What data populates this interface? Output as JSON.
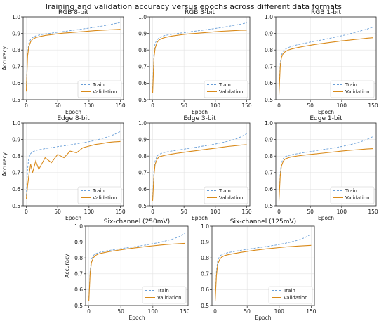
{
  "figure_title": "Training and validation accuracy versus epochs across different data formats",
  "chart_data": [
    {
      "type": "line",
      "title": "RGB 8-bit",
      "xlabel": "Epoch",
      "ylabel": "Accuracy",
      "xlim": [
        -5,
        155
      ],
      "ylim": [
        0.5,
        1.0
      ],
      "xticks": [
        "0",
        "50",
        "100",
        "150"
      ],
      "yticks": [
        "0.5",
        "0.6",
        "0.7",
        "0.8",
        "0.9",
        "1.0"
      ],
      "grid": true,
      "legend": "bottom-right",
      "series": [
        {
          "name": "Train",
          "color": "#6a9fd8",
          "style": "dashed",
          "x": [
            0,
            2,
            4,
            7,
            10,
            15,
            20,
            30,
            40,
            50,
            60,
            70,
            80,
            90,
            100,
            110,
            120,
            130,
            140,
            150
          ],
          "values": [
            0.58,
            0.78,
            0.84,
            0.865,
            0.875,
            0.885,
            0.89,
            0.897,
            0.902,
            0.907,
            0.912,
            0.917,
            0.922,
            0.927,
            0.932,
            0.938,
            0.944,
            0.951,
            0.958,
            0.966
          ]
        },
        {
          "name": "Validation",
          "color": "#d98a1a",
          "style": "solid",
          "x": [
            0,
            2,
            4,
            7,
            10,
            15,
            20,
            30,
            40,
            50,
            60,
            70,
            80,
            90,
            100,
            110,
            120,
            130,
            140,
            150
          ],
          "values": [
            0.55,
            0.76,
            0.82,
            0.85,
            0.865,
            0.875,
            0.88,
            0.888,
            0.893,
            0.898,
            0.902,
            0.905,
            0.908,
            0.911,
            0.914,
            0.917,
            0.919,
            0.921,
            0.923,
            0.925
          ]
        }
      ]
    },
    {
      "type": "line",
      "title": "RGB 3-bit",
      "xlabel": "Epoch",
      "ylabel": "",
      "xlim": [
        -5,
        155
      ],
      "ylim": [
        0.5,
        1.0
      ],
      "xticks": [
        "0",
        "50",
        "100",
        "150"
      ],
      "yticks": [
        "0.5",
        "0.6",
        "0.7",
        "0.8",
        "0.9",
        "1.0"
      ],
      "grid": true,
      "legend": "bottom-right",
      "series": [
        {
          "name": "Train",
          "color": "#6a9fd8",
          "style": "dashed",
          "x": [
            0,
            2,
            4,
            7,
            10,
            15,
            20,
            30,
            40,
            50,
            60,
            70,
            80,
            90,
            100,
            110,
            120,
            130,
            140,
            150
          ],
          "values": [
            0.57,
            0.78,
            0.84,
            0.862,
            0.872,
            0.882,
            0.888,
            0.895,
            0.9,
            0.905,
            0.91,
            0.915,
            0.92,
            0.925,
            0.93,
            0.936,
            0.942,
            0.949,
            0.956,
            0.964
          ]
        },
        {
          "name": "Validation",
          "color": "#d98a1a",
          "style": "solid",
          "x": [
            0,
            2,
            4,
            7,
            10,
            15,
            20,
            30,
            40,
            50,
            60,
            70,
            80,
            90,
            100,
            110,
            120,
            130,
            140,
            150
          ],
          "values": [
            0.54,
            0.75,
            0.81,
            0.845,
            0.86,
            0.87,
            0.876,
            0.884,
            0.889,
            0.894,
            0.898,
            0.901,
            0.904,
            0.907,
            0.91,
            0.913,
            0.915,
            0.917,
            0.919,
            0.92
          ]
        }
      ]
    },
    {
      "type": "line",
      "title": "RGB 1-bit",
      "xlabel": "Epoch",
      "ylabel": "",
      "xlim": [
        -5,
        155
      ],
      "ylim": [
        0.5,
        1.0
      ],
      "xticks": [
        "0",
        "50",
        "100",
        "150"
      ],
      "yticks": [
        "0.5",
        "0.6",
        "0.7",
        "0.8",
        "0.9",
        "1.0"
      ],
      "grid": true,
      "legend": "bottom-right",
      "series": [
        {
          "name": "Train",
          "color": "#6a9fd8",
          "style": "dashed",
          "x": [
            0,
            2,
            4,
            7,
            10,
            15,
            20,
            30,
            40,
            50,
            60,
            70,
            80,
            90,
            100,
            110,
            120,
            130,
            140,
            150
          ],
          "values": [
            0.56,
            0.72,
            0.77,
            0.795,
            0.805,
            0.815,
            0.822,
            0.832,
            0.84,
            0.848,
            0.855,
            0.862,
            0.87,
            0.878,
            0.886,
            0.895,
            0.905,
            0.915,
            0.926,
            0.938
          ]
        },
        {
          "name": "Validation",
          "color": "#d98a1a",
          "style": "solid",
          "x": [
            0,
            2,
            4,
            7,
            10,
            15,
            20,
            30,
            40,
            50,
            60,
            70,
            80,
            90,
            100,
            110,
            120,
            130,
            140,
            150
          ],
          "values": [
            0.53,
            0.7,
            0.755,
            0.78,
            0.79,
            0.8,
            0.806,
            0.815,
            0.822,
            0.829,
            0.835,
            0.84,
            0.845,
            0.85,
            0.855,
            0.859,
            0.863,
            0.867,
            0.871,
            0.874
          ]
        }
      ]
    },
    {
      "type": "line",
      "title": "Edge 8-bit",
      "xlabel": "Epoch",
      "ylabel": "Accuracy",
      "xlim": [
        -5,
        155
      ],
      "ylim": [
        0.5,
        1.0
      ],
      "xticks": [
        "0",
        "50",
        "100",
        "150"
      ],
      "yticks": [
        "0.5",
        "0.6",
        "0.7",
        "0.8",
        "0.9",
        "1.0"
      ],
      "grid": true,
      "legend": "bottom-right",
      "series": [
        {
          "name": "Train",
          "color": "#6a9fd8",
          "style": "dashed",
          "x": [
            0,
            2,
            4,
            7,
            10,
            15,
            20,
            30,
            40,
            50,
            60,
            70,
            80,
            90,
            100,
            110,
            120,
            130,
            140,
            150
          ],
          "values": [
            0.56,
            0.72,
            0.79,
            0.815,
            0.826,
            0.833,
            0.838,
            0.845,
            0.851,
            0.857,
            0.862,
            0.868,
            0.874,
            0.88,
            0.887,
            0.895,
            0.905,
            0.916,
            0.93,
            0.948
          ]
        },
        {
          "name": "Validation",
          "color": "#d98a1a",
          "style": "solid",
          "x": [
            0,
            2,
            4,
            7,
            10,
            15,
            20,
            30,
            40,
            50,
            60,
            70,
            80,
            90,
            100,
            110,
            120,
            130,
            140,
            150
          ],
          "values": [
            0.54,
            0.62,
            0.68,
            0.75,
            0.7,
            0.77,
            0.72,
            0.79,
            0.76,
            0.81,
            0.79,
            0.83,
            0.82,
            0.85,
            0.86,
            0.87,
            0.875,
            0.882,
            0.886,
            0.888
          ]
        }
      ]
    },
    {
      "type": "line",
      "title": "Edge 3-bit",
      "xlabel": "Epoch",
      "ylabel": "",
      "xlim": [
        -5,
        155
      ],
      "ylim": [
        0.5,
        1.0
      ],
      "xticks": [
        "0",
        "50",
        "100",
        "150"
      ],
      "yticks": [
        "0.5",
        "0.6",
        "0.7",
        "0.8",
        "0.9",
        "1.0"
      ],
      "grid": true,
      "legend": "bottom-right",
      "series": [
        {
          "name": "Train",
          "color": "#6a9fd8",
          "style": "dashed",
          "x": [
            0,
            2,
            4,
            7,
            10,
            15,
            20,
            30,
            40,
            50,
            60,
            70,
            80,
            90,
            100,
            110,
            120,
            130,
            140,
            150
          ],
          "values": [
            0.55,
            0.71,
            0.77,
            0.8,
            0.81,
            0.818,
            0.823,
            0.83,
            0.836,
            0.842,
            0.848,
            0.854,
            0.86,
            0.866,
            0.873,
            0.881,
            0.89,
            0.9,
            0.915,
            0.935
          ]
        },
        {
          "name": "Validation",
          "color": "#d98a1a",
          "style": "solid",
          "x": [
            0,
            2,
            4,
            7,
            10,
            15,
            20,
            30,
            40,
            50,
            60,
            70,
            80,
            90,
            100,
            110,
            120,
            130,
            140,
            150
          ],
          "values": [
            0.53,
            0.68,
            0.75,
            0.78,
            0.795,
            0.8,
            0.805,
            0.812,
            0.818,
            0.823,
            0.828,
            0.833,
            0.838,
            0.843,
            0.848,
            0.853,
            0.858,
            0.862,
            0.866,
            0.869
          ]
        }
      ]
    },
    {
      "type": "line",
      "title": "Edge 1-bit",
      "xlabel": "Epoch",
      "ylabel": "",
      "xlim": [
        -5,
        155
      ],
      "ylim": [
        0.5,
        1.0
      ],
      "xticks": [
        "0",
        "50",
        "100",
        "150"
      ],
      "yticks": [
        "0.5",
        "0.6",
        "0.7",
        "0.8",
        "0.9",
        "1.0"
      ],
      "grid": true,
      "legend": "bottom-right",
      "series": [
        {
          "name": "Train",
          "color": "#6a9fd8",
          "style": "dashed",
          "x": [
            0,
            2,
            4,
            7,
            10,
            15,
            20,
            30,
            40,
            50,
            60,
            70,
            80,
            90,
            100,
            110,
            120,
            130,
            140,
            150
          ],
          "values": [
            0.55,
            0.7,
            0.76,
            0.785,
            0.796,
            0.803,
            0.808,
            0.815,
            0.821,
            0.827,
            0.833,
            0.839,
            0.845,
            0.851,
            0.858,
            0.866,
            0.875,
            0.886,
            0.9,
            0.918
          ]
        },
        {
          "name": "Validation",
          "color": "#d98a1a",
          "style": "solid",
          "x": [
            0,
            2,
            4,
            7,
            10,
            15,
            20,
            30,
            40,
            50,
            60,
            70,
            80,
            90,
            100,
            110,
            120,
            130,
            140,
            150
          ],
          "values": [
            0.53,
            0.68,
            0.74,
            0.77,
            0.782,
            0.79,
            0.795,
            0.801,
            0.806,
            0.81,
            0.814,
            0.818,
            0.822,
            0.826,
            0.83,
            0.834,
            0.837,
            0.84,
            0.843,
            0.845
          ]
        }
      ]
    },
    {
      "type": "line",
      "title": "Six-channel (250mV)",
      "xlabel": "Epoch",
      "ylabel": "Accuracy",
      "xlim": [
        -5,
        155
      ],
      "ylim": [
        0.5,
        1.0
      ],
      "xticks": [
        "0",
        "50",
        "100",
        "150"
      ],
      "yticks": [
        "0.5",
        "0.6",
        "0.7",
        "0.8",
        "0.9",
        "1.0"
      ],
      "grid": true,
      "legend": "bottom-right",
      "series": [
        {
          "name": "Train",
          "color": "#6a9fd8",
          "style": "dashed",
          "x": [
            0,
            2,
            4,
            7,
            10,
            15,
            20,
            30,
            40,
            50,
            60,
            70,
            80,
            90,
            100,
            110,
            120,
            130,
            140,
            150
          ],
          "values": [
            0.55,
            0.72,
            0.79,
            0.815,
            0.825,
            0.833,
            0.838,
            0.846,
            0.852,
            0.858,
            0.864,
            0.87,
            0.876,
            0.882,
            0.89,
            0.898,
            0.907,
            0.918,
            0.932,
            0.955
          ]
        },
        {
          "name": "Validation",
          "color": "#d98a1a",
          "style": "solid",
          "x": [
            0,
            2,
            4,
            7,
            10,
            15,
            20,
            30,
            40,
            50,
            60,
            70,
            80,
            90,
            100,
            110,
            120,
            130,
            140,
            150
          ],
          "values": [
            0.53,
            0.7,
            0.77,
            0.8,
            0.815,
            0.825,
            0.83,
            0.838,
            0.845,
            0.851,
            0.857,
            0.862,
            0.867,
            0.872,
            0.876,
            0.88,
            0.884,
            0.887,
            0.89,
            0.892
          ]
        }
      ]
    },
    {
      "type": "line",
      "title": "Six-channel (125mV)",
      "xlabel": "Epoch",
      "ylabel": "",
      "xlim": [
        -5,
        155
      ],
      "ylim": [
        0.5,
        1.0
      ],
      "xticks": [
        "0",
        "50",
        "100",
        "150"
      ],
      "yticks": [
        "0.5",
        "0.6",
        "0.7",
        "0.8",
        "0.9",
        "1.0"
      ],
      "grid": true,
      "legend": "bottom-right",
      "series": [
        {
          "name": "Train",
          "color": "#6a9fd8",
          "style": "dashed",
          "x": [
            0,
            2,
            4,
            7,
            10,
            15,
            20,
            30,
            40,
            50,
            60,
            70,
            80,
            90,
            100,
            110,
            120,
            130,
            140,
            150
          ],
          "values": [
            0.55,
            0.72,
            0.785,
            0.81,
            0.82,
            0.828,
            0.833,
            0.841,
            0.848,
            0.854,
            0.86,
            0.866,
            0.872,
            0.878,
            0.885,
            0.893,
            0.902,
            0.913,
            0.928,
            0.95
          ]
        },
        {
          "name": "Validation",
          "color": "#d98a1a",
          "style": "solid",
          "x": [
            0,
            2,
            4,
            7,
            10,
            15,
            20,
            30,
            40,
            50,
            60,
            70,
            80,
            90,
            100,
            110,
            120,
            130,
            140,
            150
          ],
          "values": [
            0.53,
            0.69,
            0.76,
            0.79,
            0.805,
            0.815,
            0.82,
            0.828,
            0.835,
            0.841,
            0.847,
            0.852,
            0.857,
            0.861,
            0.865,
            0.869,
            0.872,
            0.875,
            0.877,
            0.879
          ]
        }
      ]
    }
  ]
}
